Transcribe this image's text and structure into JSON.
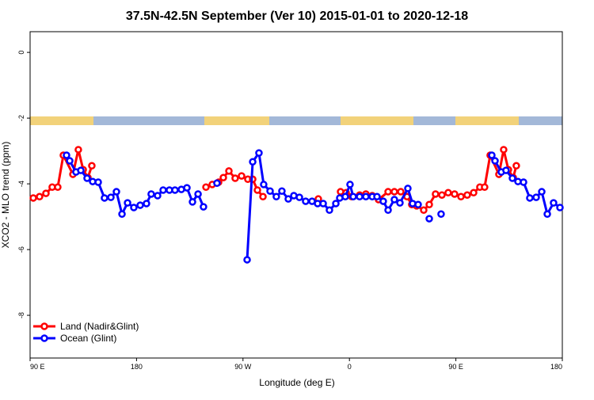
{
  "chart_data": {
    "type": "line",
    "title": "37.5N-42.5N September (Ver 10)   2015-01-01 to 2020-12-18",
    "x_label": "Longitude (deg E)",
    "y_label": "XCO2 - MLO trend (ppm)",
    "xlim": [
      90,
      540
    ],
    "ylim": [
      -9.3,
      0.63
    ],
    "xticks": [
      {
        "value": 90,
        "label": "90 E"
      },
      180,
      {
        "value": 270,
        "label": "90 W"
      },
      {
        "value": 360,
        "label": "0"
      },
      {
        "value": 450,
        "label": "90 E"
      },
      {
        "value": 540,
        "label": "180"
      }
    ],
    "yticks": [
      0,
      -2,
      -4,
      -6,
      -8
    ],
    "legend": "bottom-left",
    "series": [
      {
        "name": "Land (Nadir&Glint)",
        "color": "#ff0000",
        "x": [
          92.7,
          98,
          103.4,
          108.7,
          113.4,
          118.1,
          126.2,
          130.8,
          134.9,
          138.9,
          142.2,
          190,
          238.7,
          244,
          249.4,
          253.4,
          258.1,
          263.4,
          268.8,
          274.1,
          278.2,
          282.2,
          286.9,
          310,
          333.7,
          343,
          352.5,
          357.2,
          361.9,
          368.6,
          373.9,
          379.3,
          384.6,
          392.7,
          398,
          403.4,
          408.7,
          412.7,
          416.8,
          422.8,
          427.5,
          432.8,
          438.2,
          443.5,
          448.9,
          454.3,
          459.6,
          465,
          470.3,
          474.3,
          479,
          486.4,
          490.4,
          494.4,
          498.5,
          501.1
        ],
        "values": [
          -4.43,
          -4.39,
          -4.29,
          -4.1,
          -4.1,
          -3.13,
          -3.71,
          -2.96,
          -3.57,
          -3.81,
          -3.45,
          null,
          -4.1,
          -4.02,
          -3.95,
          -3.81,
          -3.61,
          -3.83,
          -3.76,
          -3.86,
          -3.86,
          -4.19,
          -4.39,
          null,
          -4.46,
          null,
          -4.24,
          -4.27,
          -4.39,
          -4.34,
          -4.31,
          -4.36,
          -4.48,
          -4.24,
          -4.24,
          -4.24,
          -4.39,
          -4.63,
          -4.67,
          -4.8,
          -4.63,
          -4.31,
          -4.34,
          -4.27,
          -4.31,
          -4.39,
          -4.34,
          -4.27,
          -4.1,
          -4.1,
          -3.13,
          -3.71,
          -2.96,
          -3.57,
          -3.81,
          -3.45
        ]
      },
      {
        "name": "Ocean (Glint)",
        "color": "#0000ff",
        "x": [
          120.8,
          123.5,
          128.8,
          132.9,
          138.2,
          142.9,
          147.6,
          152.9,
          158.3,
          163,
          167.7,
          172.4,
          177.7,
          183.1,
          188.4,
          192.4,
          197.8,
          202.5,
          207.8,
          212.5,
          217.9,
          222.6,
          227.3,
          232,
          236.6,
          242,
          248,
          260,
          273.5,
          278.2,
          283.5,
          287.5,
          292.9,
          298.2,
          302.9,
          308.3,
          313,
          317.7,
          323,
          328.4,
          333.1,
          337.8,
          343.1,
          348.5,
          351.8,
          356.5,
          360.5,
          363.2,
          368.6,
          373.9,
          379.3,
          383.3,
          388.6,
          392.7,
          398,
          402.7,
          409.4,
          413.4,
          418.1,
          422,
          427.5,
          432,
          437.5,
          459,
          480.4,
          483.1,
          488.4,
          492.4,
          497.8,
          502.5,
          507.2,
          512.5,
          517.9,
          522.6,
          527.3,
          532.6,
          538
        ],
        "values": [
          -3.13,
          -3.3,
          -3.64,
          -3.59,
          -3.83,
          -3.93,
          -3.95,
          -4.43,
          -4.41,
          -4.24,
          -4.92,
          -4.58,
          -4.72,
          -4.65,
          -4.6,
          -4.31,
          -4.36,
          -4.19,
          -4.19,
          -4.19,
          -4.17,
          -4.12,
          -4.55,
          -4.31,
          -4.7,
          null,
          -3.98,
          null,
          -6.31,
          -3.33,
          -3.06,
          -4.02,
          -4.22,
          -4.39,
          -4.22,
          -4.46,
          -4.36,
          -4.41,
          -4.53,
          -4.53,
          -4.6,
          -4.6,
          -4.8,
          -4.6,
          -4.43,
          -4.39,
          -4.02,
          -4.39,
          -4.39,
          -4.39,
          -4.39,
          -4.39,
          -4.53,
          -4.8,
          -4.48,
          -4.58,
          -4.14,
          -4.6,
          -4.63,
          null,
          -5.06,
          null,
          -4.92,
          null,
          -3.13,
          -3.3,
          -3.64,
          -3.59,
          -3.83,
          -3.93,
          -3.95,
          -4.43,
          -4.41,
          -4.24,
          -4.92,
          -4.58,
          -4.72
        ]
      }
    ]
  }
}
